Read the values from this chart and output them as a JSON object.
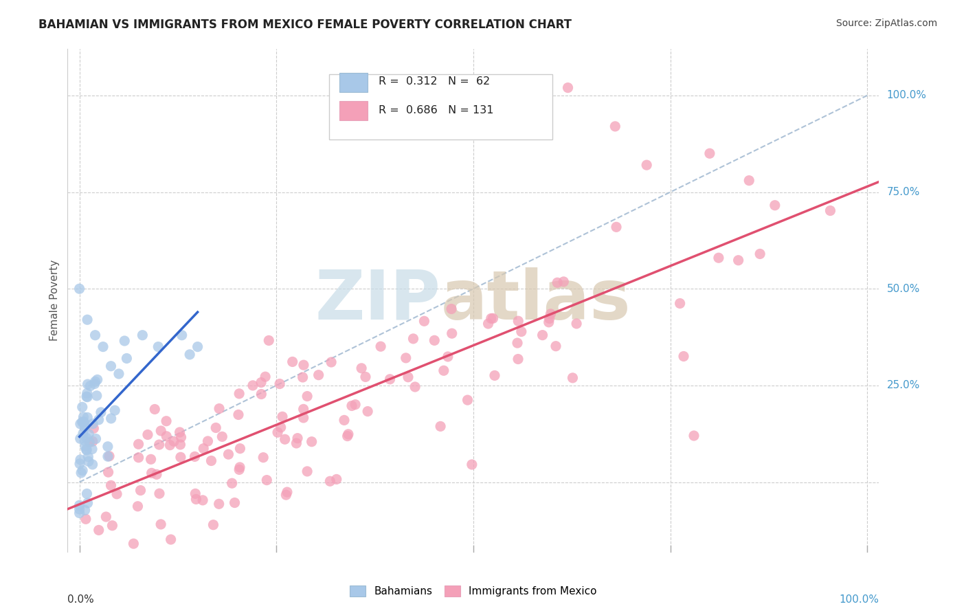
{
  "title": "BAHAMIAN VS IMMIGRANTS FROM MEXICO FEMALE POVERTY CORRELATION CHART",
  "source": "Source: ZipAtlas.com",
  "ylabel": "Female Poverty",
  "legend1_r": "0.312",
  "legend1_n": "62",
  "legend2_r": "0.686",
  "legend2_n": "131",
  "color_blue": "#a8c8e8",
  "color_pink": "#f4a0b8",
  "color_blue_line": "#3366cc",
  "color_pink_line": "#e05070",
  "color_dash": "#a0b8d0",
  "background_color": "#ffffff",
  "grid_color": "#cccccc",
  "right_label_color": "#4499cc",
  "title_color": "#222222",
  "source_color": "#444444",
  "watermark_zip_color": "#c8dce8",
  "watermark_atlas_color": "#d8c8b0"
}
